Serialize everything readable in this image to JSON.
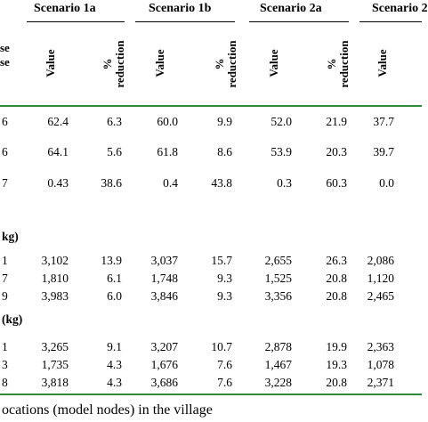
{
  "header": {
    "scenarios": [
      "Scenario 1a",
      "Scenario 1b",
      "Scenario 2a",
      "Scenario 2"
    ],
    "left_label_top": "se",
    "left_label_bottom": "se",
    "value_label": "Value",
    "reduction_label_1": "%",
    "reduction_label_2": "reduction"
  },
  "rows_a": [
    {
      "base": "6",
      "v1a": "62.4",
      "r1a": "6.3",
      "v1b": "60.0",
      "r1b": "9.9",
      "v2a": "52.0",
      "r2a": "21.9",
      "v2": "37.7"
    },
    {
      "base": "6",
      "v1a": "64.1",
      "r1a": "5.6",
      "v1b": "61.8",
      "r1b": "8.6",
      "v2a": "53.9",
      "r2a": "20.3",
      "v2": "39.7"
    },
    {
      "base": "7",
      "v1a": "0.43",
      "r1a": "38.6",
      "v1b": "0.4",
      "r1b": "43.8",
      "v2a": "0.3",
      "r2a": "60.3",
      "v2": "0.0"
    }
  ],
  "section_b_label": "kg)",
  "rows_b": [
    {
      "base": "1",
      "v1a": "3,102",
      "r1a": "13.9",
      "v1b": "3,037",
      "r1b": "15.7",
      "v2a": "2,655",
      "r2a": "26.3",
      "v2": "2,086"
    },
    {
      "base": "7",
      "v1a": "1,810",
      "r1a": "6.1",
      "v1b": "1,748",
      "r1b": "9.3",
      "v2a": "1,525",
      "r2a": "20.8",
      "v2": "1,120"
    },
    {
      "base": "9",
      "v1a": "3,983",
      "r1a": "6.0",
      "v1b": "3,846",
      "r1b": "9.3",
      "v2a": "3,356",
      "r2a": "20.8",
      "v2": "2,465"
    }
  ],
  "section_c_label": "(kg)",
  "rows_c": [
    {
      "base": "1",
      "v1a": "3,265",
      "r1a": "9.1",
      "v1b": "3,207",
      "r1b": "10.7",
      "v2a": "2,878",
      "r2a": "19.9",
      "v2": "2,363"
    },
    {
      "base": "3",
      "v1a": "1,735",
      "r1a": "4.3",
      "v1b": "1,676",
      "r1b": "7.6",
      "v2a": "1,467",
      "r2a": "19.3",
      "v2": "1,078"
    },
    {
      "base": "8",
      "v1a": "3,818",
      "r1a": "4.3",
      "v1b": "3,686",
      "r1b": "7.6",
      "v2a": "3,228",
      "r2a": "20.8",
      "v2": "2,371"
    }
  ],
  "footer": "ocations (model nodes) in the village",
  "colors": {
    "rule": "#2e8b3a"
  }
}
